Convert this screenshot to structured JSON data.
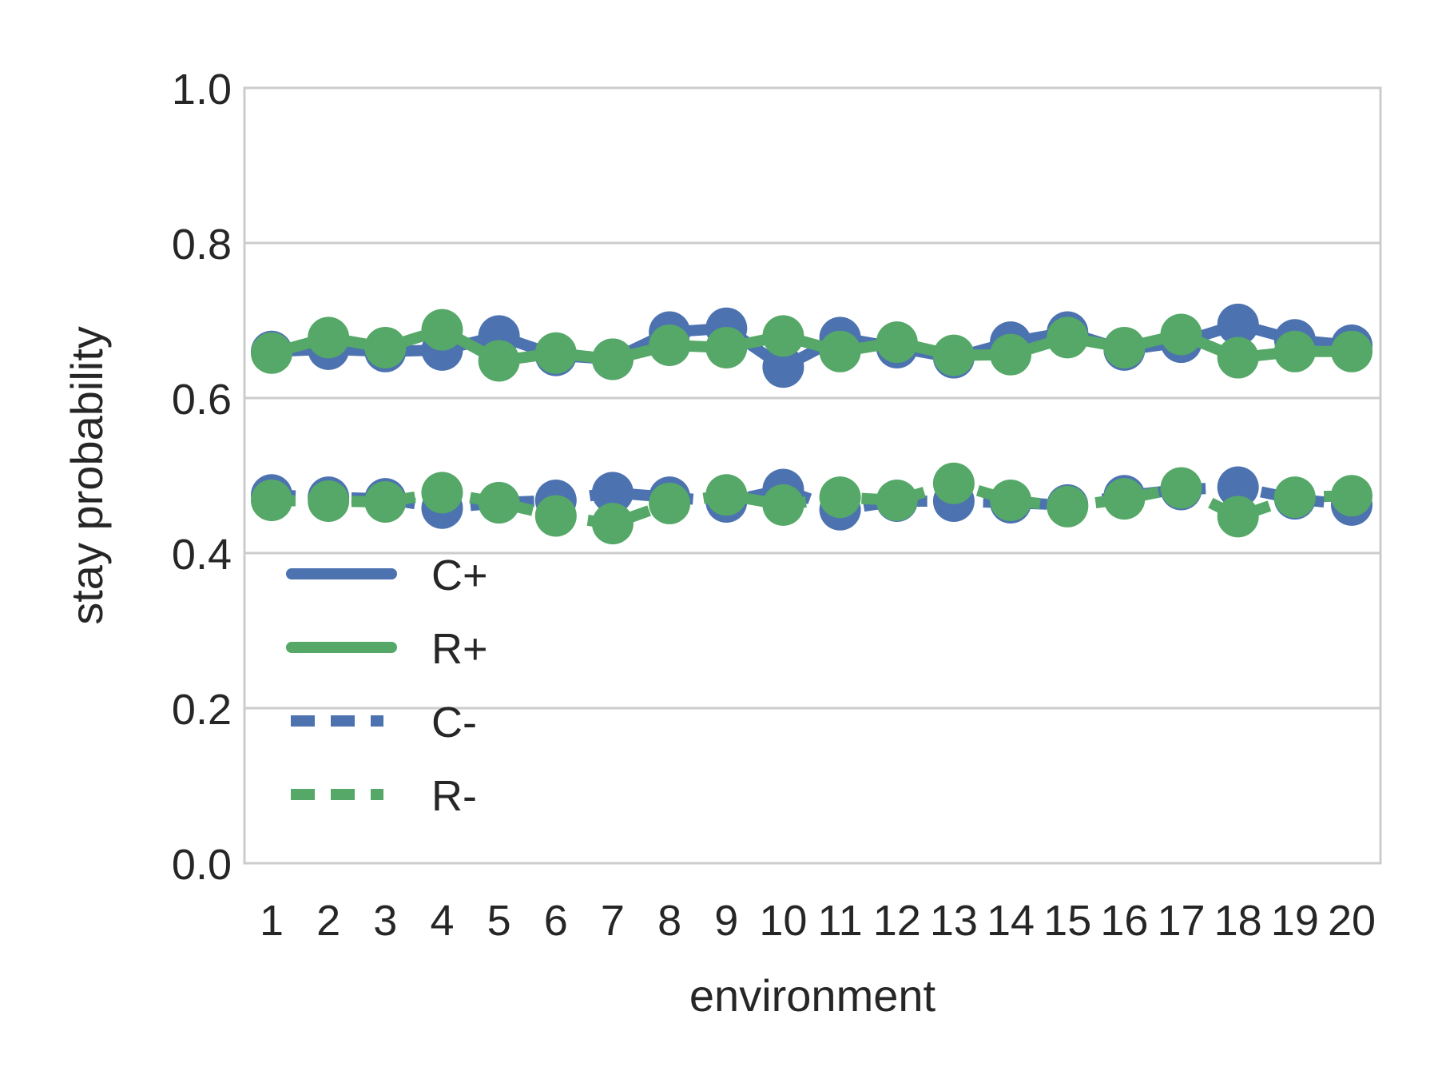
{
  "chart_data": {
    "type": "line",
    "title": "",
    "xlabel": "environment",
    "ylabel": "stay probability",
    "ylim": [
      0.0,
      1.0
    ],
    "yticks": [
      "0.0",
      "0.2",
      "0.4",
      "0.6",
      "0.8",
      "1.0"
    ],
    "categories": [
      "1",
      "2",
      "3",
      "4",
      "5",
      "6",
      "7",
      "8",
      "9",
      "10",
      "11",
      "12",
      "13",
      "14",
      "15",
      "16",
      "17",
      "18",
      "19",
      "20"
    ],
    "grid": "horizontal",
    "legend_position": "lower-left",
    "series": [
      {
        "name": "C+",
        "color": "#4C72B0",
        "linestyle": "solid",
        "values": [
          0.66,
          0.663,
          0.66,
          0.662,
          0.68,
          0.655,
          0.65,
          0.685,
          0.69,
          0.64,
          0.678,
          0.665,
          0.652,
          0.672,
          0.685,
          0.662,
          0.672,
          0.695,
          0.675,
          0.668
        ]
      },
      {
        "name": "R+",
        "color": "#55A868",
        "linestyle": "solid",
        "values": [
          0.658,
          0.678,
          0.665,
          0.688,
          0.648,
          0.658,
          0.65,
          0.668,
          0.665,
          0.68,
          0.66,
          0.672,
          0.655,
          0.656,
          0.678,
          0.665,
          0.682,
          0.652,
          0.66,
          0.66
        ]
      },
      {
        "name": "C-",
        "color": "#4C72B0",
        "linestyle": "dashed",
        "values": [
          0.475,
          0.472,
          0.47,
          0.458,
          0.465,
          0.468,
          0.478,
          0.472,
          0.466,
          0.482,
          0.456,
          0.467,
          0.467,
          0.465,
          0.462,
          0.474,
          0.482,
          0.485,
          0.47,
          0.462
        ]
      },
      {
        "name": "R-",
        "color": "#55A868",
        "linestyle": "dashed",
        "values": [
          0.468,
          0.467,
          0.466,
          0.478,
          0.465,
          0.448,
          0.438,
          0.464,
          0.475,
          0.462,
          0.472,
          0.468,
          0.49,
          0.468,
          0.46,
          0.47,
          0.484,
          0.447,
          0.472,
          0.474
        ]
      }
    ]
  }
}
